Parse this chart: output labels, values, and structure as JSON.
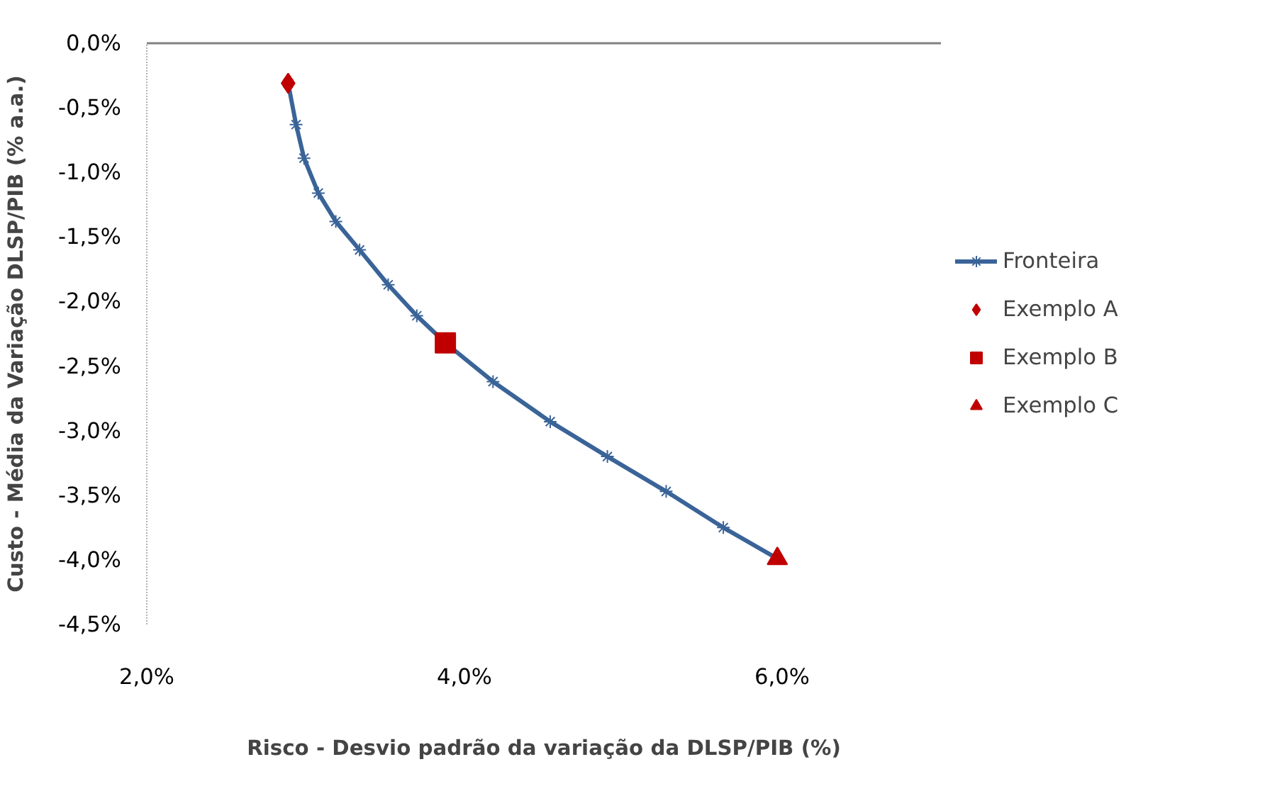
{
  "chart_data": {
    "type": "line",
    "xlabel": "Risco - Desvio padrão da variação da DLSP/PIB (%)",
    "ylabel": "Custo - Média da Variação DLSP/PIB (% a.a.)",
    "xlim": [
      2.0,
      7.0
    ],
    "xticks": [
      {
        "value": 2.0,
        "label": "2,0%"
      },
      {
        "value": 4.0,
        "label": "4,0%"
      },
      {
        "value": 6.0,
        "label": "6,0%"
      }
    ],
    "ylim": [
      -4.5,
      0.0
    ],
    "yticks": [
      {
        "value": 0.0,
        "label": "0,0%"
      },
      {
        "value": -0.5,
        "label": "-0,5%"
      },
      {
        "value": -1.0,
        "label": "-1,0%"
      },
      {
        "value": -1.5,
        "label": "-1,5%"
      },
      {
        "value": -2.0,
        "label": "-2,0%"
      },
      {
        "value": -2.5,
        "label": "-2,5%"
      },
      {
        "value": -3.0,
        "label": "-3,0%"
      },
      {
        "value": -3.5,
        "label": "-3,5%"
      },
      {
        "value": -4.0,
        "label": "-4,0%"
      },
      {
        "value": -4.5,
        "label": "-4,5%"
      }
    ],
    "grid": false,
    "legend": "right",
    "series": [
      {
        "name": "Fronteira",
        "color": "#3a6498",
        "marker": "cross",
        "x": [
          2.89,
          2.94,
          2.99,
          3.08,
          3.19,
          3.34,
          3.52,
          3.7,
          3.88,
          4.18,
          4.54,
          4.9,
          5.27,
          5.63,
          5.97
        ],
        "values": [
          -0.31,
          -0.63,
          -0.89,
          -1.16,
          -1.38,
          -1.6,
          -1.87,
          -2.11,
          -2.32,
          -2.62,
          -2.93,
          -3.2,
          -3.47,
          -3.75,
          -3.99
        ]
      },
      {
        "name": "Exemplo A",
        "type": "scatter",
        "color": "#c00000",
        "marker": "diamond",
        "x": [
          2.89
        ],
        "values": [
          -0.31
        ]
      },
      {
        "name": "Exemplo B",
        "type": "scatter",
        "color": "#c00000",
        "marker": "square",
        "x": [
          3.88
        ],
        "values": [
          -2.32
        ]
      },
      {
        "name": "Exemplo C",
        "type": "scatter",
        "color": "#c00000",
        "marker": "triangle",
        "x": [
          5.97
        ],
        "values": [
          -3.99
        ]
      }
    ]
  }
}
